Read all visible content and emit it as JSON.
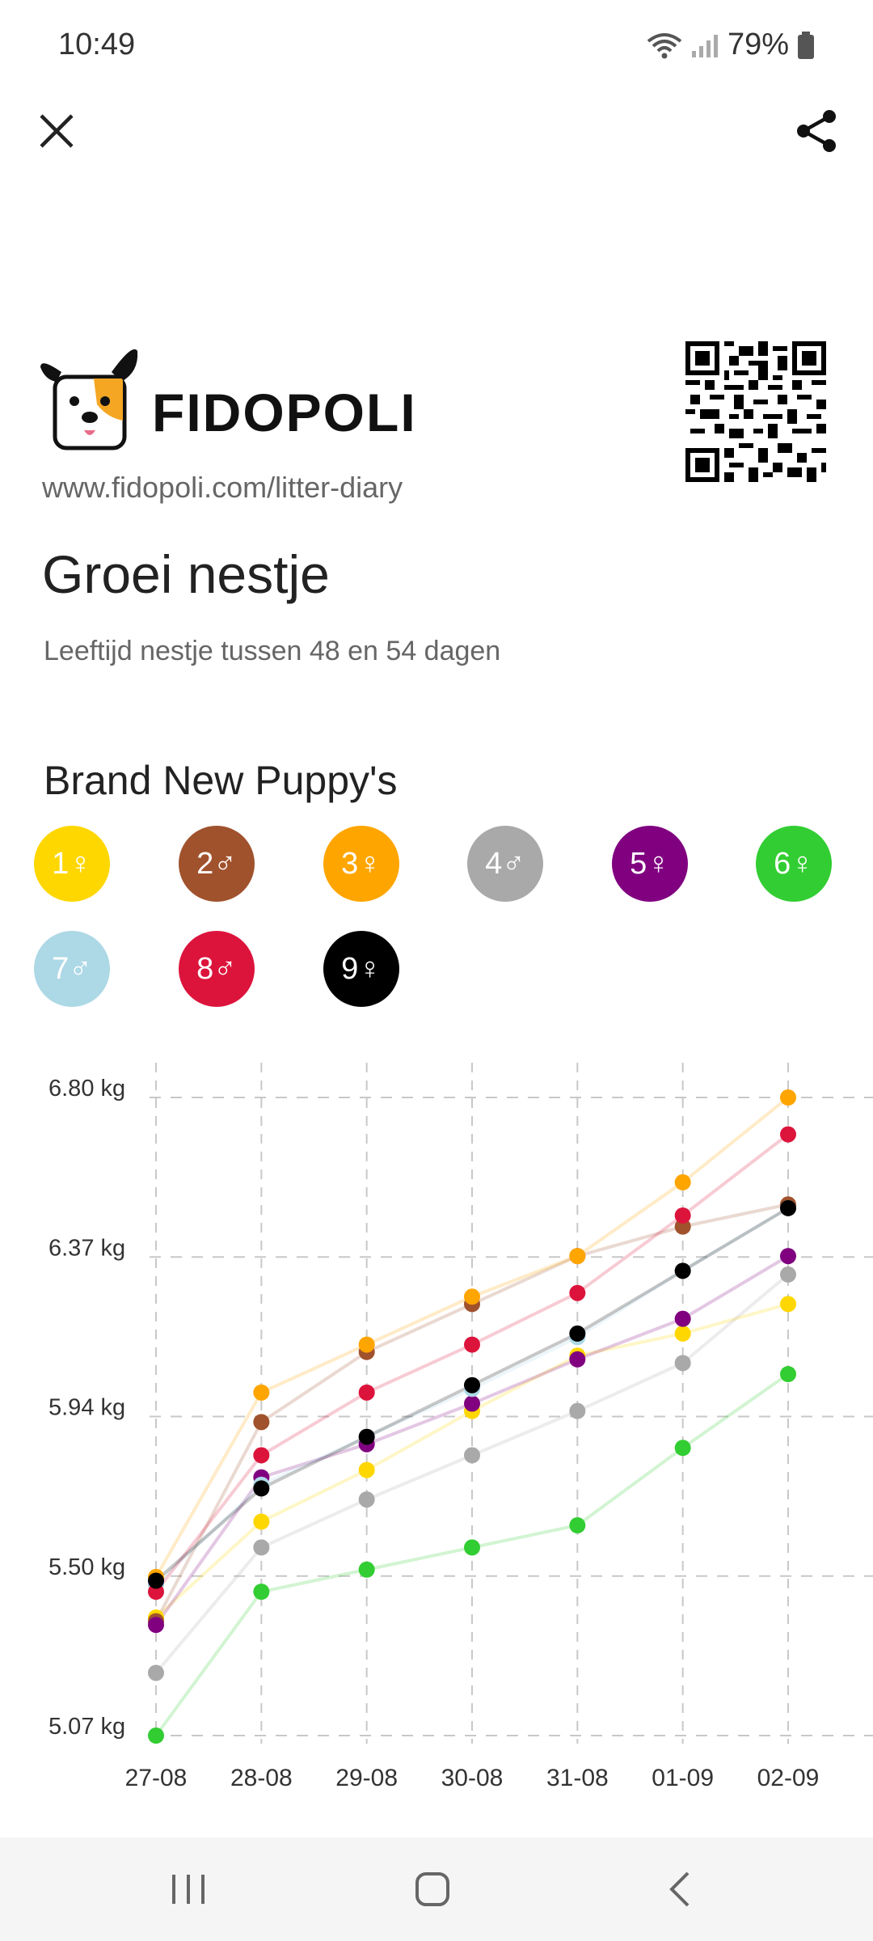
{
  "status": {
    "time": "10:49",
    "battery": "79%"
  },
  "header": {
    "close_icon": "close-icon",
    "share_icon": "share-icon"
  },
  "brand": {
    "name": "FIDOPOLI",
    "url": "www.fidopoli.com/litter-diary"
  },
  "page": {
    "title": "Groei nestje",
    "subtitle": "Leeftijd nestje tussen 48 en 54 dagen",
    "litter_name": "Brand New Puppy's"
  },
  "puppies": [
    {
      "label": "1♀",
      "color": "#FFD700"
    },
    {
      "label": "2♂",
      "color": "#A0522D"
    },
    {
      "label": "3♀",
      "color": "#FFA500"
    },
    {
      "label": "4♂",
      "color": "#A9A9A9"
    },
    {
      "label": "5♀",
      "color": "#800080"
    },
    {
      "label": "6♀",
      "color": "#32CD32"
    },
    {
      "label": "7♂",
      "color": "#ADD8E6"
    },
    {
      "label": "8♂",
      "color": "#DC143C"
    },
    {
      "label": "9♀",
      "color": "#000000"
    }
  ],
  "chart_data": {
    "type": "line",
    "x": [
      "27-08",
      "28-08",
      "29-08",
      "30-08",
      "31-08",
      "01-09",
      "02-09"
    ],
    "y_ticks": [
      "6.80 kg",
      "6.37 kg",
      "5.94 kg",
      "5.50 kg",
      "5.07 kg"
    ],
    "ylim": [
      5.07,
      6.8
    ],
    "grid": true,
    "series": [
      {
        "name": "1♀",
        "color": "#FFD700",
        "values": [
          5.39,
          5.65,
          5.79,
          5.95,
          6.1,
          6.16,
          6.24
        ]
      },
      {
        "name": "2♂",
        "color": "#A0522D",
        "values": [
          5.38,
          5.92,
          6.11,
          6.24,
          6.37,
          6.45,
          6.51
        ]
      },
      {
        "name": "3♀",
        "color": "#FFA500",
        "values": [
          5.5,
          6.0,
          6.13,
          6.26,
          6.37,
          6.57,
          6.8
        ]
      },
      {
        "name": "4♂",
        "color": "#A9A9A9",
        "values": [
          5.24,
          5.58,
          5.71,
          5.83,
          5.95,
          6.08,
          6.32
        ]
      },
      {
        "name": "5♀",
        "color": "#800080",
        "values": [
          5.37,
          5.77,
          5.86,
          5.97,
          6.09,
          6.2,
          6.37
        ]
      },
      {
        "name": "6♀",
        "color": "#32CD32",
        "values": [
          5.07,
          5.46,
          5.52,
          5.58,
          5.64,
          5.85,
          6.05
        ]
      },
      {
        "name": "7♂",
        "color": "#ADD8E6",
        "values": [
          5.48,
          5.75,
          5.88,
          6.01,
          6.15,
          6.33,
          6.5
        ]
      },
      {
        "name": "8♂",
        "color": "#DC143C",
        "values": [
          5.46,
          5.83,
          6.0,
          6.13,
          6.27,
          6.48,
          6.7
        ]
      },
      {
        "name": "9♀",
        "color": "#000000",
        "values": [
          5.49,
          5.74,
          5.88,
          6.02,
          6.16,
          6.33,
          6.5
        ]
      }
    ]
  }
}
